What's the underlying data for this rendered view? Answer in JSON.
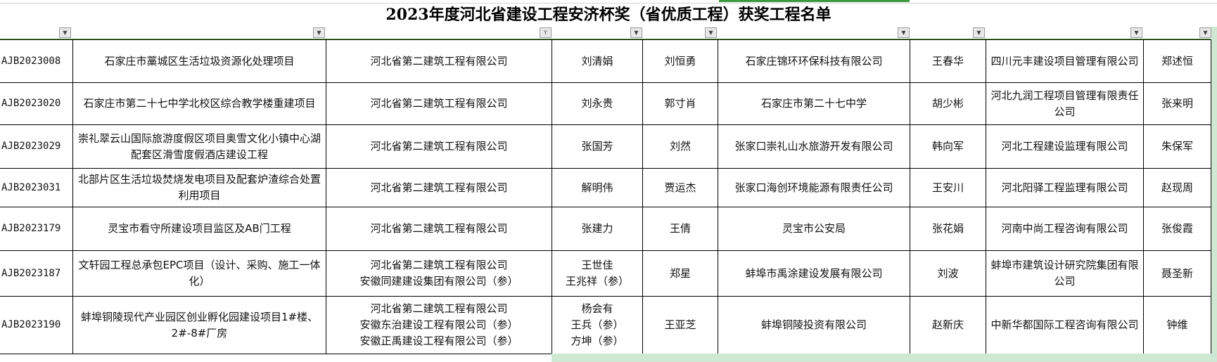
{
  "title": "2023年度河北省建设工程安济杯奖（省优质工程）获奖工程名单",
  "colors": {
    "selection_green": "#3f9a3f",
    "header_line": "#5aa03a",
    "fill_green": "#cfe8d3"
  },
  "filter_icons": [
    "dropdown-arrow",
    "dropdown-arrow",
    "filter-active",
    "dropdown-arrow",
    "dropdown-arrow",
    "dropdown-arrow",
    "dropdown-arrow",
    "dropdown-arrow",
    "dropdown-arrow"
  ],
  "rows": [
    {
      "code": "AJB2023008",
      "project": "石家庄市藁城区生活垃圾资源化处理项目",
      "builder": "河北省第二建筑工程有限公司",
      "manager": "刘清娟",
      "tech": "刘恒勇",
      "owner": "石家庄锦环环保科技有限公司",
      "owner_rep": "王春华",
      "supervisor": "四川元丰建设项目管理有限公司",
      "sup_rep": "郑述恒"
    },
    {
      "code": "AJB2023020",
      "project": "石家庄市第二十七中学北校区综合教学楼重建项目",
      "builder": "河北省第二建筑工程有限公司",
      "manager": "刘永贵",
      "tech": "郭寸肖",
      "owner": "石家庄市第二十七中学",
      "owner_rep": "胡少彬",
      "supervisor": "河北九润工程项目管理有限责任公司",
      "sup_rep": "张来明"
    },
    {
      "code": "AJB2023029",
      "project": "崇礼翠云山国际旅游度假区项目奥雪文化小镇中心湖配套区滑雪度假酒店建设工程",
      "builder": "河北省第二建筑工程有限公司",
      "manager": "张国芳",
      "tech": "刘然",
      "owner": "张家口崇礼山水旅游开发有限公司",
      "owner_rep": "韩向军",
      "supervisor": "河北工程建设监理有限公司",
      "sup_rep": "朱保军"
    },
    {
      "code": "AJB2023031",
      "project": "北部片区生活垃圾焚烧发电项目及配套炉渣综合处置利用项目",
      "builder": "河北省第二建筑工程有限公司",
      "manager": "解明伟",
      "tech": "贾运杰",
      "owner": "张家口海创环境能源有限责任公司",
      "owner_rep": "王安川",
      "supervisor": "河北阳驿工程监理有限公司",
      "sup_rep": "赵现周"
    },
    {
      "code": "AJB2023179",
      "project": "灵宝市看守所建设项目监区及AB门工程",
      "builder": "河北省第二建筑工程有限公司",
      "manager": "张建力",
      "tech": "王倩",
      "owner": "灵宝市公安局",
      "owner_rep": "张花娟",
      "supervisor": "河南中尚工程咨询有限公司",
      "sup_rep": "张俊霞"
    },
    {
      "code": "AJB2023187",
      "project": "文轩园工程总承包EPC项目（设计、采购、施工一体化）",
      "builder": "河北省第二建筑工程有限公司\n安徽同建建设集团有限公司（参）",
      "manager": "王世佳\n王兆祥（参）",
      "tech": "郑星",
      "owner": "蚌埠市禹涂建设发展有限公司",
      "owner_rep": "刘波",
      "supervisor": "蚌埠市建筑设计研究院集团有限公司",
      "sup_rep": "聂圣新"
    },
    {
      "code": "AJB2023190",
      "project": "蚌埠铜陵现代产业园区创业孵化园建设项目1#楼、2#-8#厂房",
      "builder": "河北省第二建筑工程有限公司\n安徽东治建设工程有限公司（参）\n安徽正禹建设工程有限公司（参）",
      "manager": "杨会有\n王兵（参）\n方坤（参）",
      "tech": "王亚芝",
      "owner": "蚌埠铜陵投资有限公司",
      "owner_rep": "赵新庆",
      "supervisor": "中新华都国际工程咨询有限公司",
      "sup_rep": "钟维"
    }
  ]
}
